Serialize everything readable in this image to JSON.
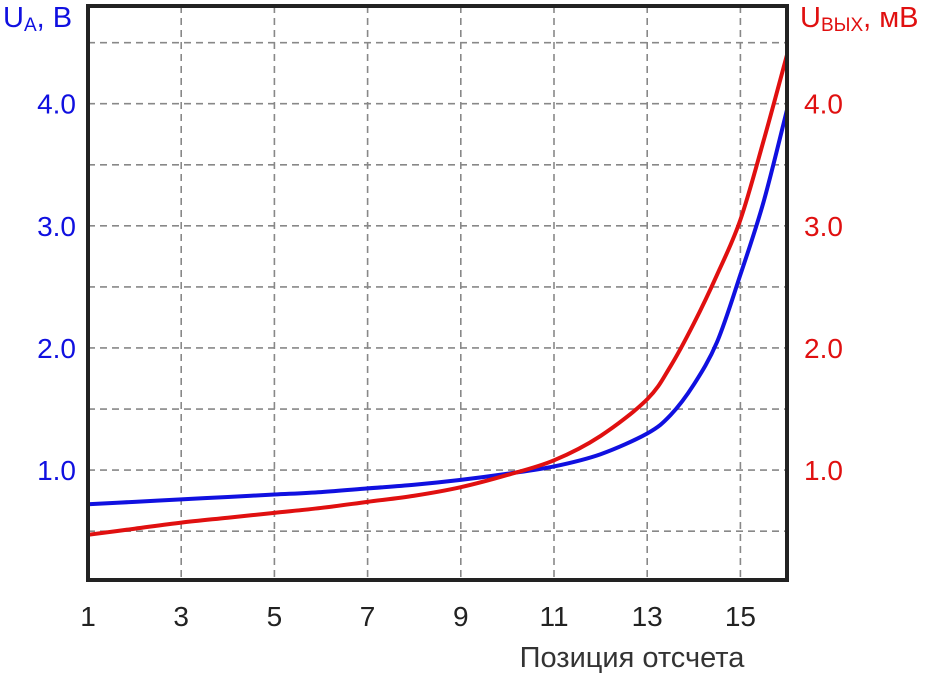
{
  "chart_data": {
    "type": "line",
    "xlabel": "Позиция отсчета",
    "xlim": [
      1,
      16
    ],
    "x_ticks": [
      1,
      3,
      5,
      7,
      9,
      11,
      13,
      15
    ],
    "left_axis": {
      "label_main": "U",
      "label_sub": "A",
      "label_rest": ", В",
      "ylim": [
        0.1,
        4.8
      ],
      "ticks": [
        "1.0",
        "2.0",
        "3.0",
        "4.0"
      ],
      "color": "#1010e0"
    },
    "right_axis": {
      "label_main": "U",
      "label_sub": "ВЫХ",
      "label_rest": ", мВ",
      "ylim": [
        0.1,
        4.8
      ],
      "ticks": [
        "1.0",
        "2.0",
        "3.0",
        "4.0"
      ],
      "color": "#e01010"
    },
    "grid": true,
    "series": [
      {
        "axis": "left",
        "color": "#1010e0",
        "points": [
          [
            1,
            0.72
          ],
          [
            2,
            0.74
          ],
          [
            3,
            0.76
          ],
          [
            4,
            0.78
          ],
          [
            5,
            0.8
          ],
          [
            6,
            0.82
          ],
          [
            7,
            0.85
          ],
          [
            8,
            0.88
          ],
          [
            9,
            0.92
          ],
          [
            10,
            0.97
          ],
          [
            11,
            1.03
          ],
          [
            12,
            1.13
          ],
          [
            13,
            1.3
          ],
          [
            13.5,
            1.45
          ],
          [
            14,
            1.7
          ],
          [
            14.5,
            2.05
          ],
          [
            15,
            2.6
          ],
          [
            15.5,
            3.2
          ],
          [
            16,
            3.95
          ]
        ]
      },
      {
        "axis": "right",
        "color": "#e01010",
        "points": [
          [
            1,
            0.47
          ],
          [
            2,
            0.52
          ],
          [
            3,
            0.57
          ],
          [
            4,
            0.61
          ],
          [
            5,
            0.65
          ],
          [
            6,
            0.69
          ],
          [
            7,
            0.74
          ],
          [
            8,
            0.79
          ],
          [
            9,
            0.86
          ],
          [
            10,
            0.96
          ],
          [
            11,
            1.08
          ],
          [
            12,
            1.28
          ],
          [
            13,
            1.58
          ],
          [
            13.5,
            1.85
          ],
          [
            14,
            2.2
          ],
          [
            14.5,
            2.6
          ],
          [
            15,
            3.05
          ],
          [
            15.5,
            3.7
          ],
          [
            16,
            4.4
          ]
        ]
      }
    ]
  }
}
